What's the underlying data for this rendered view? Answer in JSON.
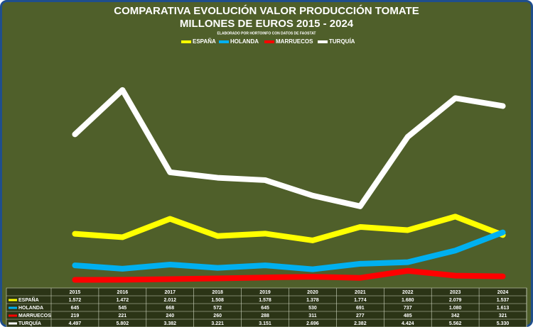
{
  "chart_data": {
    "type": "line",
    "title_lines": [
      "COMPARATIVA EVOLUCIÓN VALOR PRODUCCIÓN TOMATE",
      "MILLONES DE EUROS 2015 - 2024"
    ],
    "subtitle": "ELABORADO POR HORTOINFO CON DATOS DE  FAOSTAT",
    "categories": [
      "2015",
      "2016",
      "2017",
      "2018",
      "2019",
      "2020",
      "2021",
      "2022",
      "2023",
      "2024"
    ],
    "ylim": [
      0,
      6800
    ],
    "legend": "top",
    "series": [
      {
        "name": "ESPAÑA",
        "color": "#ffff00",
        "values": [
          1572,
          1472,
          2012,
          1508,
          1578,
          1378,
          1774,
          1680,
          2079,
          1537
        ],
        "value_labels": [
          "1.572",
          "1.472",
          "2.012",
          "1.508",
          "1.578",
          "1.378",
          "1.774",
          "1.680",
          "2.079",
          "1.537"
        ]
      },
      {
        "name": "HOLANDA",
        "color": "#00b0f0",
        "values": [
          645,
          545,
          668,
          572,
          645,
          530,
          691,
          737,
          1080,
          1613
        ],
        "value_labels": [
          "645",
          "545",
          "668",
          "572",
          "645",
          "530",
          "691",
          "737",
          "1.080",
          "1.613"
        ]
      },
      {
        "name": "MARRUECOS",
        "color": "#ff0000",
        "values": [
          219,
          221,
          240,
          260,
          288,
          311,
          277,
          485,
          342,
          321
        ],
        "value_labels": [
          "219",
          "221",
          "240",
          "260",
          "288",
          "311",
          "277",
          "485",
          "342",
          "321"
        ]
      },
      {
        "name": "TURQUÍA",
        "color": "#ffffff",
        "values": [
          4497,
          5802,
          3382,
          3221,
          3151,
          2696,
          2382,
          4424,
          5562,
          5330
        ],
        "value_labels": [
          "4.497",
          "5.802",
          "3.382",
          "3.221",
          "3.151",
          "2.696",
          "2.382",
          "4.424",
          "5.562",
          "5.330"
        ]
      }
    ]
  }
}
